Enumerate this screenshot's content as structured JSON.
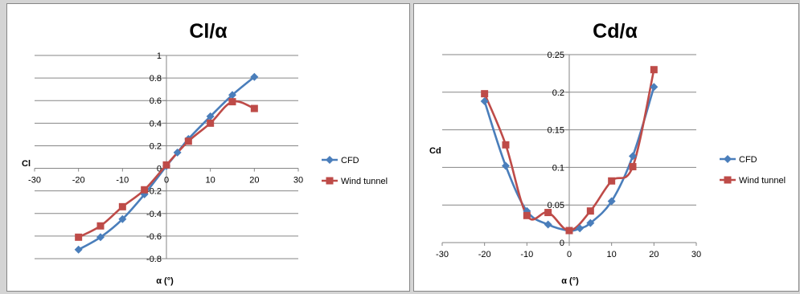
{
  "chart_data": [
    {
      "type": "line",
      "title": "Cl/α",
      "xlabel": "α (°)",
      "ylabel": "Cl",
      "xlim": [
        -30,
        30
      ],
      "ylim": [
        -0.8,
        1
      ],
      "xticks": [
        -30,
        -20,
        -10,
        0,
        10,
        20,
        30
      ],
      "yticks": [
        -0.8,
        -0.6,
        -0.4,
        -0.2,
        0,
        0.2,
        0.4,
        0.6,
        0.8,
        1
      ],
      "xtick_labels": [
        "-30",
        "-20",
        "-10",
        "0",
        "10",
        "20",
        "30"
      ],
      "ytick_labels": [
        "-0.8",
        "-0.6",
        "-0.4",
        "-0.2",
        "0",
        "0.2",
        "0.4",
        "0.6",
        "0.8",
        "1"
      ],
      "grid": "horizontal",
      "legend": "right",
      "series": [
        {
          "name": "CFD",
          "color": "#4a7ebb",
          "marker": "diamond",
          "x": [
            -20,
            -15,
            -10,
            -5,
            0,
            2.5,
            5,
            10,
            15,
            20
          ],
          "y": [
            -0.72,
            -0.61,
            -0.45,
            -0.23,
            0.02,
            0.14,
            0.26,
            0.46,
            0.65,
            0.81
          ]
        },
        {
          "name": "Wind tunnel",
          "color": "#be4b48",
          "marker": "square",
          "x": [
            -20,
            -15,
            -10,
            -5,
            0,
            5,
            10,
            15,
            20
          ],
          "y": [
            -0.61,
            -0.51,
            -0.34,
            -0.19,
            0.03,
            0.24,
            0.4,
            0.59,
            0.53
          ]
        }
      ]
    },
    {
      "type": "line",
      "title": "Cd/α",
      "xlabel": "α (°)",
      "ylabel": "Cd",
      "xlim": [
        -30,
        30
      ],
      "ylim": [
        0,
        0.25
      ],
      "xticks": [
        -30,
        -20,
        -10,
        0,
        10,
        20,
        30
      ],
      "yticks": [
        0,
        0.05,
        0.1,
        0.15,
        0.2,
        0.25
      ],
      "xtick_labels": [
        "-30",
        "-20",
        "-10",
        "0",
        "10",
        "20",
        "30"
      ],
      "ytick_labels": [
        "0",
        "0.05",
        "0.1",
        "0.15",
        "0.2",
        "0.25"
      ],
      "grid": "horizontal",
      "legend": "right",
      "series": [
        {
          "name": "CFD",
          "color": "#4a7ebb",
          "marker": "diamond",
          "x": [
            -20,
            -15,
            -10,
            -5,
            0,
            2.5,
            5,
            10,
            15,
            20
          ],
          "y": [
            0.188,
            0.102,
            0.042,
            0.024,
            0.016,
            0.019,
            0.026,
            0.055,
            0.115,
            0.207
          ]
        },
        {
          "name": "Wind tunnel",
          "color": "#be4b48",
          "marker": "square",
          "x": [
            -20,
            -15,
            -10,
            -5,
            0,
            5,
            10,
            15,
            20
          ],
          "y": [
            0.198,
            0.13,
            0.036,
            0.04,
            0.016,
            0.042,
            0.082,
            0.101,
            0.23
          ]
        }
      ]
    }
  ]
}
